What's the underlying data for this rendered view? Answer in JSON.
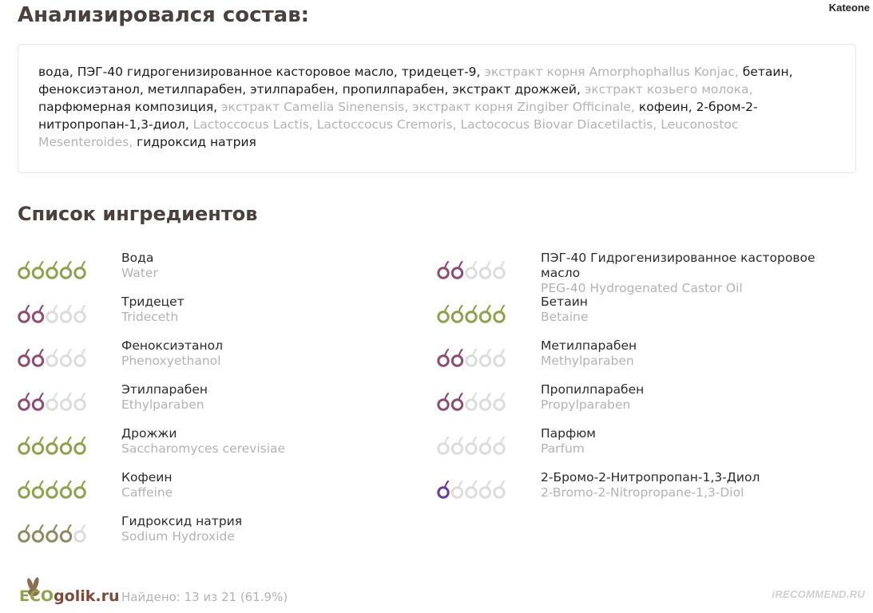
{
  "header": {
    "username": "Kateone"
  },
  "composition": {
    "title": "Анализировался состав:",
    "items": [
      {
        "text": "вода",
        "known": true
      },
      {
        "text": "ПЭГ-40 гидрогенизированное касторовое масло",
        "known": true
      },
      {
        "text": "тридецет-9",
        "known": true
      },
      {
        "text": "экстракт корня Amorphophallus Konjac",
        "known": false
      },
      {
        "text": "бетаин",
        "known": true
      },
      {
        "text": "феноксиэтанол",
        "known": true
      },
      {
        "text": "метилпарабен",
        "known": true
      },
      {
        "text": "этилпарабен",
        "known": true
      },
      {
        "text": "пропилпарабен",
        "known": true
      },
      {
        "text": "экстракт дрожжей",
        "known": true
      },
      {
        "text": "экстракт козьего молока",
        "known": false
      },
      {
        "text": "парфюмерная композиция",
        "known": true
      },
      {
        "text": "экстракт Camelia Sinenensis",
        "known": false
      },
      {
        "text": "экстракт корня Zingiber Officinale",
        "known": false
      },
      {
        "text": "кофеин",
        "known": true
      },
      {
        "text": "2-бром-2-нитропропан-1,3-диол",
        "known": true
      },
      {
        "text": "Lactoccocus Lactis",
        "known": false
      },
      {
        "text": "Lactoccocus Cremoris",
        "known": false
      },
      {
        "text": "Lactococus Biovar Diacetilactis",
        "known": false
      },
      {
        "text": "Leuconostoc Mesenteroides",
        "known": false
      },
      {
        "text": "гидроксид натрия",
        "known": true
      }
    ]
  },
  "ingredients": {
    "title": "Список ингредиентов",
    "colors": {
      "green": "#8fa14f",
      "olive": "#8e8a62",
      "purple": "#8b4e72",
      "violet": "#6a3c99",
      "empty": "#dcdcdc"
    },
    "items": [
      {
        "ru": "Вода",
        "en": "Water",
        "rating": 5,
        "color": "green"
      },
      {
        "ru": "ПЭГ-40 Гидрогенизированное касторовое масло",
        "en": "PEG-40 Hydrogenated Castor Oil",
        "rating": 2,
        "color": "purple"
      },
      {
        "ru": "Тридецет",
        "en": "Trideceth",
        "rating": 2,
        "color": "purple"
      },
      {
        "ru": "Бетаин",
        "en": "Betaine",
        "rating": 5,
        "color": "green"
      },
      {
        "ru": "Феноксиэтанол",
        "en": "Phenoxyethanol",
        "rating": 2,
        "color": "purple"
      },
      {
        "ru": "Метилпарабен",
        "en": "Methylparaben",
        "rating": 2,
        "color": "purple"
      },
      {
        "ru": "Этилпарабен",
        "en": "Ethylparaben",
        "rating": 2,
        "color": "purple"
      },
      {
        "ru": "Пропилпарабен",
        "en": "Propylparaben",
        "rating": 2,
        "color": "purple"
      },
      {
        "ru": "Дрожжи",
        "en": "Saccharomyces cerevisiae",
        "rating": 5,
        "color": "green"
      },
      {
        "ru": "Парфюм",
        "en": "Parfum",
        "rating": 0,
        "color": "empty"
      },
      {
        "ru": "Кофеин",
        "en": "Caffeine",
        "rating": 5,
        "color": "green"
      },
      {
        "ru": "2-Бромо-2-Нитропропан-1,3-Диол",
        "en": "2-Bromo-2-Nitropropane-1,3-Diol",
        "rating": 1,
        "color": "violet"
      },
      {
        "ru": "Гидроксид натрия",
        "en": "Sodium Hydroxide",
        "rating": 4,
        "color": "olive"
      }
    ]
  },
  "footer": {
    "logo_eco": "ECO",
    "logo_rest": "golik.ru",
    "found_text": "Найдено: 13 из 21 (61.9%)",
    "watermark": "iRECOMMEND.RU"
  }
}
